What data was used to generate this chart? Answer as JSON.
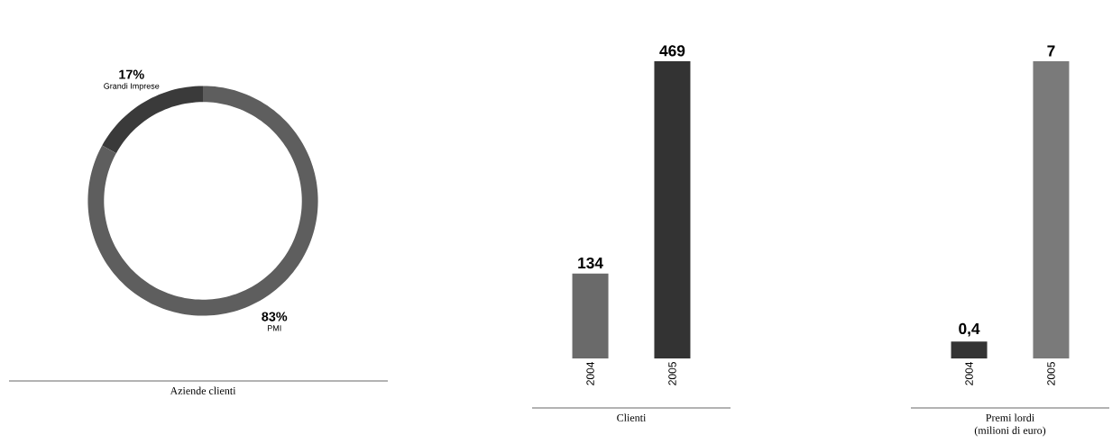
{
  "chart_data": [
    {
      "type": "donut",
      "title": "Aziende clienti",
      "categories": [
        "Grandi Imprese",
        "PMI"
      ],
      "values": [
        17,
        83
      ],
      "value_labels": [
        "17%",
        "83%"
      ],
      "colors": [
        "#3a3a3a",
        "#5e5e5e"
      ]
    },
    {
      "type": "bar",
      "title": "Clienti",
      "categories": [
        "2004",
        "2005"
      ],
      "values": [
        134,
        469
      ],
      "value_labels": [
        "134",
        "469"
      ],
      "colors": [
        "#6a6a6a",
        "#333333"
      ]
    },
    {
      "type": "bar",
      "title": "Premi lordi",
      "subtitle": "(milioni di euro)",
      "categories": [
        "2004",
        "2005"
      ],
      "values": [
        0.4,
        7
      ],
      "value_labels": [
        "0,4",
        "7"
      ],
      "colors": [
        "#333333",
        "#7a7a7a"
      ]
    }
  ]
}
